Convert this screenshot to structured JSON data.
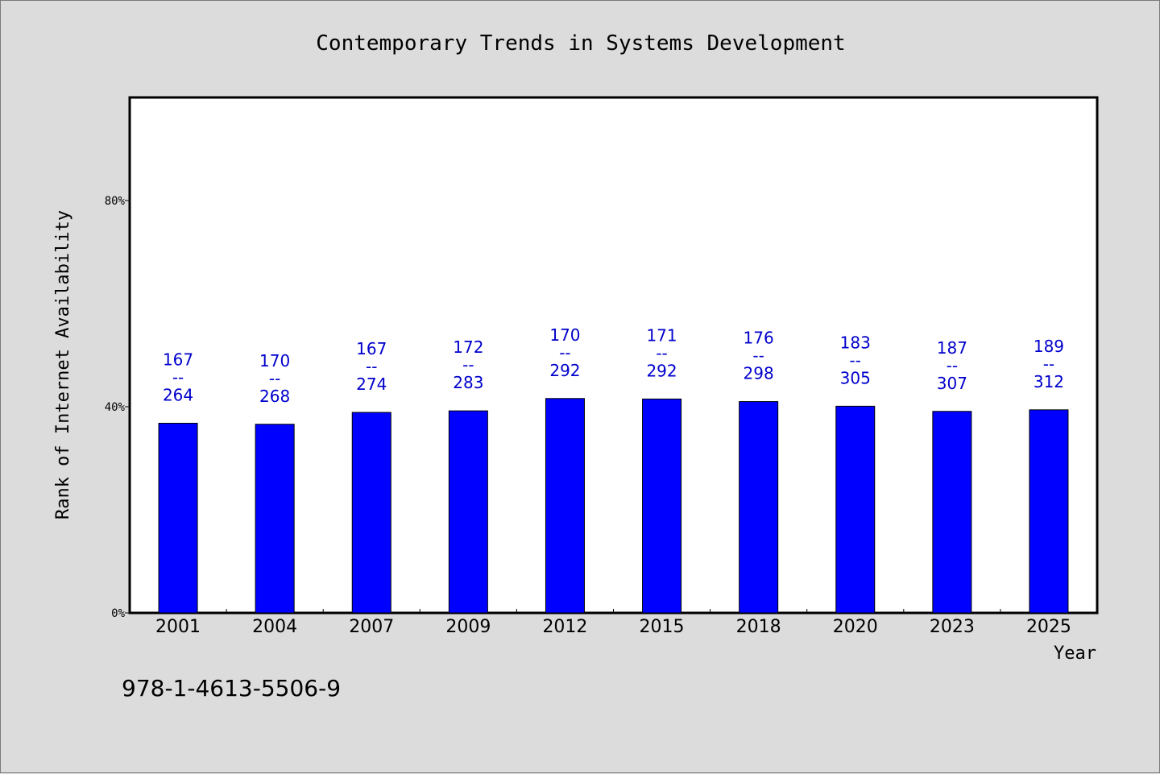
{
  "chart_data": {
    "type": "bar",
    "title": "Contemporary Trends in Systems Development",
    "xlabel": "Year",
    "ylabel": "Rank of Internet Availability",
    "ylim": [
      0,
      100
    ],
    "y_ticks": [
      {
        "value": 0,
        "label": "0%"
      },
      {
        "value": 40,
        "label": "40%"
      },
      {
        "value": 80,
        "label": "80%"
      }
    ],
    "categories": [
      "2001",
      "2004",
      "2007",
      "2009",
      "2012",
      "2015",
      "2018",
      "2020",
      "2023",
      "2025"
    ],
    "values": [
      36.8,
      36.6,
      38.9,
      39.2,
      41.6,
      41.5,
      41.0,
      40.1,
      39.1,
      39.4
    ],
    "data_labels": [
      {
        "top": "167",
        "mid": "--",
        "bottom": "264"
      },
      {
        "top": "170",
        "mid": "--",
        "bottom": "268"
      },
      {
        "top": "167",
        "mid": "--",
        "bottom": "274"
      },
      {
        "top": "172",
        "mid": "--",
        "bottom": "283"
      },
      {
        "top": "170",
        "mid": "--",
        "bottom": "292"
      },
      {
        "top": "171",
        "mid": "--",
        "bottom": "292"
      },
      {
        "top": "176",
        "mid": "--",
        "bottom": "298"
      },
      {
        "top": "183",
        "mid": "--",
        "bottom": "305"
      },
      {
        "top": "187",
        "mid": "--",
        "bottom": "307"
      },
      {
        "top": "189",
        "mid": "--",
        "bottom": "312"
      }
    ],
    "bar_color": "#0000ff",
    "label_color": "#0000cc",
    "grid": false,
    "legend": "none"
  },
  "footnote": "978-1-4613-5506-9"
}
